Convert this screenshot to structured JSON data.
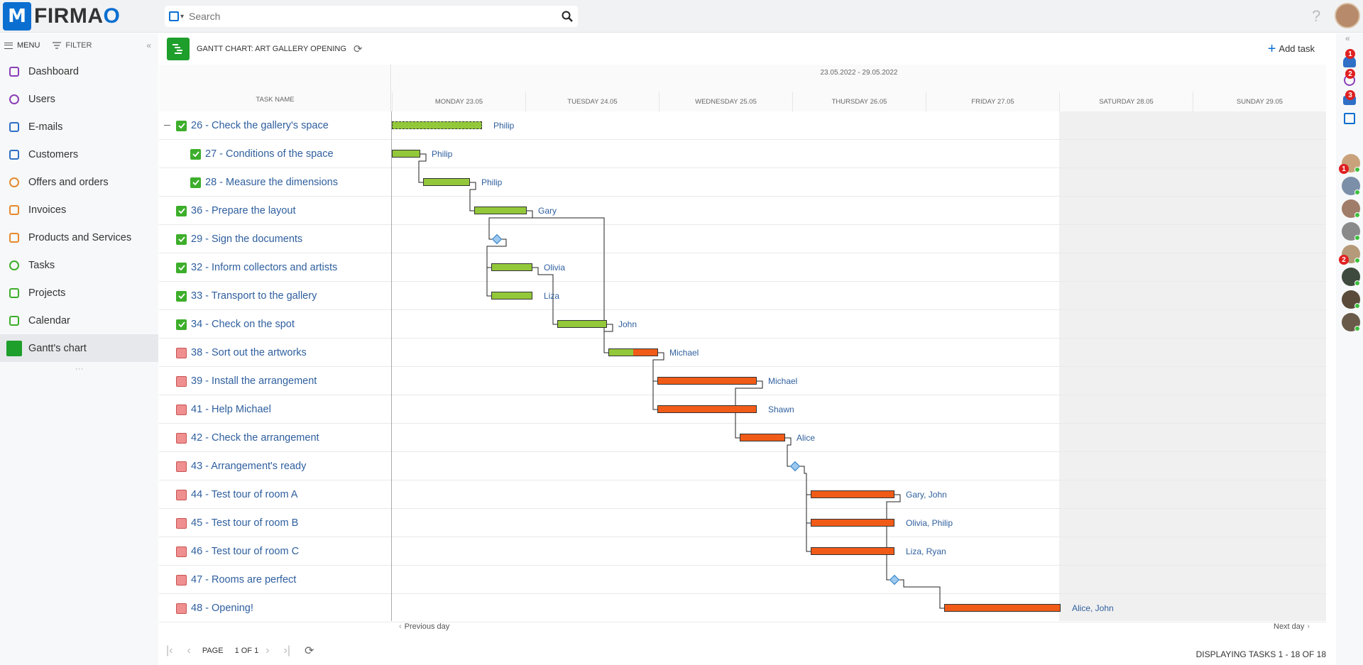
{
  "app": {
    "brand_first": "FIRMA",
    "brand_last": "O"
  },
  "search": {
    "placeholder": "Search"
  },
  "sidebar": {
    "menu_label": "MENU",
    "filter_label": "FILTER",
    "items": [
      {
        "label": "Dashboard",
        "icon": "grid-icon",
        "color": "#8a3fb8"
      },
      {
        "label": "Users",
        "icon": "users-icon",
        "color": "#8a3fb8"
      },
      {
        "label": "E-mails",
        "icon": "mail-icon",
        "color": "#2f6fc6"
      },
      {
        "label": "Customers",
        "icon": "customers-icon",
        "color": "#2f6fc6"
      },
      {
        "label": "Offers and orders",
        "icon": "tag-icon",
        "color": "#e68a2e"
      },
      {
        "label": "Invoices",
        "icon": "dollar-icon",
        "color": "#e68a2e"
      },
      {
        "label": "Products and Services",
        "icon": "box-icon",
        "color": "#e68a2e"
      },
      {
        "label": "Tasks",
        "icon": "task-icon",
        "color": "#3dae2b"
      },
      {
        "label": "Projects",
        "icon": "projects-icon",
        "color": "#3dae2b"
      },
      {
        "label": "Calendar",
        "icon": "calendar-icon",
        "color": "#3dae2b"
      },
      {
        "label": "Gantt's chart",
        "icon": "gantt-icon",
        "color": "#1e9e2b"
      }
    ]
  },
  "header": {
    "title": "GANTT CHART: ART GALLERY OPENING",
    "add_task": "Add task"
  },
  "gantt": {
    "task_col_label": "TASK NAME",
    "range_label": "23.05.2022 - 29.05.2022",
    "days": [
      "MONDAY 23.05",
      "TUESDAY 24.05",
      "WEDNESDAY 25.05",
      "THURSDAY 26.05",
      "FRIDAY 27.05",
      "SATURDAY 28.05",
      "SUNDAY 29.05"
    ],
    "tasks": [
      {
        "name": "26 - Check the gallery's space",
        "status": "done",
        "level": 0,
        "resources": "Philip"
      },
      {
        "name": "27 - Conditions of the space",
        "status": "done",
        "level": 1,
        "resources": "Philip"
      },
      {
        "name": "28 - Measure the dimensions",
        "status": "done",
        "level": 1,
        "resources": "Philip"
      },
      {
        "name": "36 - Prepare the layout",
        "status": "done",
        "level": 0,
        "resources": "Gary"
      },
      {
        "name": "29 - Sign the documents",
        "status": "done",
        "level": 0,
        "resources": ""
      },
      {
        "name": "32 - Inform collectors and artists",
        "status": "done",
        "level": 0,
        "resources": "Olivia"
      },
      {
        "name": "33 - Transport to the gallery",
        "status": "done",
        "level": 0,
        "resources": "Liza"
      },
      {
        "name": "34 - Check on the spot",
        "status": "done",
        "level": 0,
        "resources": "John"
      },
      {
        "name": "38 - Sort out the artworks",
        "status": "open",
        "level": 0,
        "resources": "Michael"
      },
      {
        "name": "39 - Install the arrangement",
        "status": "open",
        "level": 0,
        "resources": "Michael"
      },
      {
        "name": "41 - Help Michael",
        "status": "open",
        "level": 0,
        "resources": "Shawn"
      },
      {
        "name": "42 - Check the arrangement",
        "status": "open",
        "level": 0,
        "resources": "Alice"
      },
      {
        "name": "43 - Arrangement's ready",
        "status": "open",
        "level": 0,
        "resources": ""
      },
      {
        "name": "44 - Test tour of room A",
        "status": "open",
        "level": 0,
        "resources": "Gary, John"
      },
      {
        "name": "45 - Test tour of room B",
        "status": "open",
        "level": 0,
        "resources": "Olivia, Philip"
      },
      {
        "name": "46 - Test tour of room C",
        "status": "open",
        "level": 0,
        "resources": "Liza, Ryan"
      },
      {
        "name": "47 - Rooms are perfect",
        "status": "open",
        "level": 0,
        "resources": ""
      },
      {
        "name": "48 - Opening!",
        "status": "open",
        "level": 0,
        "resources": "Alice, John"
      }
    ],
    "prev_day": "Previous day",
    "next_day": "Next day"
  },
  "pager": {
    "page_label": "PAGE",
    "page_value": "1 OF 1",
    "status": "DISPLAYING TASKS 1 - 18 OF 18"
  },
  "rightbar": {
    "badges": [
      "1",
      "2",
      "3",
      "1",
      "2"
    ]
  }
}
